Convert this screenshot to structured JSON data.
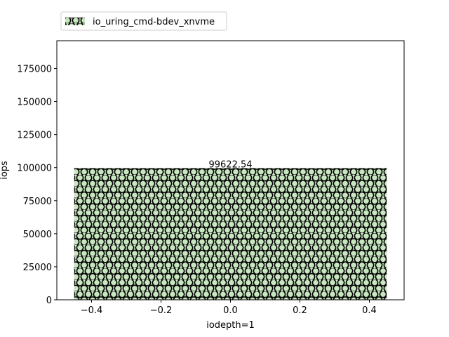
{
  "chart_data": {
    "type": "bar",
    "x": [
      0
    ],
    "series": [
      {
        "name": "io_uring_cmd-bdev_xnvme",
        "values": [
          99622.54
        ],
        "data_labels": [
          "99622.54"
        ]
      }
    ],
    "bar_width": 0.9,
    "hatch": "circles",
    "colors": {
      "bar_fill": "#c8e6c0",
      "hatch": "#000000"
    },
    "xlabel": "iodepth=1",
    "ylabel": "iops",
    "xlim": [
      -0.5,
      0.5
    ],
    "ylim": [
      0,
      196000
    ],
    "xticks": [
      -0.4,
      -0.2,
      0.0,
      0.2,
      0.4
    ],
    "xtick_labels": [
      "−0.4",
      "−0.2",
      "0.0",
      "0.2",
      "0.4"
    ],
    "yticks": [
      0,
      25000,
      50000,
      75000,
      100000,
      125000,
      150000,
      175000
    ],
    "ytick_labels": [
      "0",
      "25000",
      "50000",
      "75000",
      "100000",
      "125000",
      "150000",
      "175000"
    ],
    "grid": false,
    "legend_position": "top-left, above plot"
  }
}
